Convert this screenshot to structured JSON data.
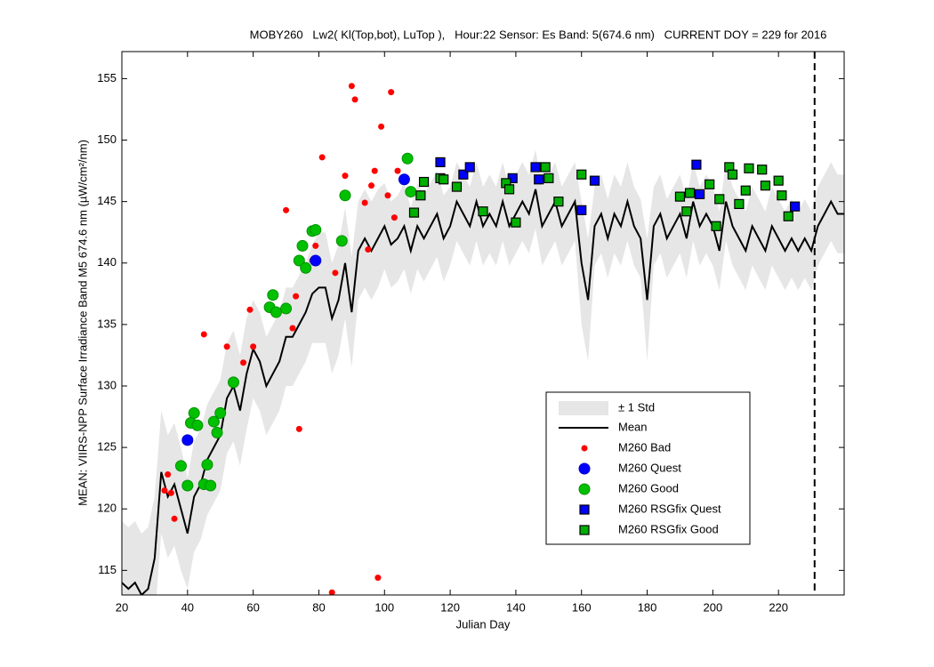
{
  "chart_data": {
    "type": "line",
    "title": "MOBY260   Lw2( Kl(Top,bot), LuTop ),   Hour:22 Sensor: Es Band: 5(674.6 nm)   CURRENT DOY = 229 for 2016",
    "xlabel": "Julian Day",
    "ylabel": "MEAN: VIIRS-NPP Surface Irradiance Band M5 674.6 nm (µW/cm²/nm)",
    "xlim": [
      20,
      240
    ],
    "ylim": [
      113,
      157.2
    ],
    "xticks": [
      20,
      40,
      60,
      80,
      100,
      120,
      140,
      160,
      180,
      200,
      220
    ],
    "yticks": [
      115,
      120,
      125,
      130,
      135,
      140,
      145,
      150,
      155
    ],
    "vline": 231,
    "x": [
      20,
      22,
      24,
      26,
      28,
      30,
      32,
      34,
      36,
      38,
      40,
      42,
      44,
      46,
      48,
      50,
      52,
      54,
      56,
      58,
      60,
      62,
      64,
      66,
      68,
      70,
      72,
      74,
      76,
      78,
      80,
      82,
      84,
      86,
      88,
      90,
      92,
      94,
      96,
      98,
      100,
      102,
      104,
      106,
      108,
      110,
      112,
      114,
      116,
      118,
      120,
      122,
      124,
      126,
      128,
      130,
      132,
      134,
      136,
      138,
      140,
      142,
      144,
      146,
      148,
      150,
      152,
      154,
      156,
      158,
      160,
      162,
      164,
      166,
      168,
      170,
      172,
      174,
      176,
      178,
      180,
      182,
      184,
      186,
      188,
      190,
      192,
      194,
      196,
      198,
      200,
      202,
      204,
      206,
      208,
      210,
      212,
      214,
      216,
      218,
      220,
      222,
      224,
      226,
      228,
      230,
      232,
      234,
      236,
      238,
      240
    ],
    "mean": {
      "name": "Mean",
      "color": "#000000",
      "values": [
        114,
        113.5,
        114,
        113,
        113.5,
        116,
        123,
        121,
        122,
        120,
        118,
        121,
        122,
        124,
        125,
        126,
        129,
        130,
        128,
        131,
        133,
        132,
        130,
        131,
        132,
        134,
        134,
        135,
        136,
        137.5,
        138,
        138,
        135.5,
        137,
        140,
        136,
        141,
        142,
        141,
        142,
        143,
        141.5,
        142,
        143,
        141,
        143,
        142,
        143,
        144,
        142,
        143,
        145,
        144,
        143,
        145,
        143,
        144,
        143,
        145,
        143,
        144,
        145,
        144,
        146,
        143,
        144,
        145,
        143,
        144,
        145,
        140,
        137,
        143,
        144,
        142,
        144,
        143,
        145,
        143,
        142,
        137,
        143,
        144,
        142,
        143,
        144,
        142,
        145,
        143,
        144,
        143,
        141,
        145,
        143,
        142,
        141,
        143,
        142,
        141,
        143,
        142,
        141,
        142,
        141,
        142,
        141,
        143,
        144,
        145,
        144,
        144
      ]
    },
    "band": {
      "name": "± 1 Std",
      "color": "#e6e6e6",
      "std": [
        5,
        5,
        5,
        5,
        5,
        5,
        5,
        5,
        5,
        5,
        4.5,
        4.5,
        4.5,
        4.5,
        4.5,
        4.5,
        4.5,
        4.5,
        4.5,
        4.5,
        4,
        4,
        4,
        4,
        4,
        4,
        4,
        4,
        4,
        4,
        4.5,
        4.5,
        4.5,
        4.5,
        4.5,
        4.5,
        4,
        4,
        4,
        4,
        3.5,
        3.5,
        3.5,
        3.5,
        3.5,
        3.5,
        3.5,
        3.5,
        3.5,
        3.5,
        3.2,
        3.2,
        3.2,
        3.2,
        3.2,
        3.2,
        3.2,
        3.2,
        3.2,
        3.2,
        3.2,
        3.2,
        3.2,
        3.2,
        3.2,
        3.2,
        3.2,
        3.2,
        3.2,
        3.2,
        5,
        5,
        3.2,
        3.2,
        3.2,
        3.2,
        3.2,
        3.2,
        3.2,
        3.2,
        5,
        3.2,
        3.2,
        3.2,
        3.2,
        3.2,
        3.2,
        3.2,
        3.2,
        3.2,
        3.2,
        3.2,
        3.2,
        3.2,
        3.2,
        3.2,
        3.2,
        3.2,
        3.2,
        3.2,
        3.2,
        3.2,
        3.2,
        3.2,
        3.2,
        3.2,
        3.2,
        3.2,
        3.2,
        3.2,
        3.2
      ]
    },
    "points": [
      {
        "name": "M260 Bad",
        "color": "#ff0000",
        "marker": "dot",
        "x": [
          33,
          34,
          35,
          36,
          45,
          52,
          57,
          59,
          60,
          70,
          72,
          73,
          74,
          78,
          79,
          81,
          84,
          85,
          88,
          90,
          91,
          94,
          95,
          96,
          97,
          98,
          99,
          101,
          102,
          103,
          104
        ],
        "y": [
          121.5,
          122.8,
          121.3,
          119.2,
          134.2,
          133.2,
          131.9,
          136.2,
          133.2,
          144.3,
          134.7,
          137.3,
          126.5,
          140.2,
          141.4,
          148.6,
          113.2,
          139.2,
          147.1,
          154.4,
          153.3,
          144.9,
          141.1,
          146.3,
          147.5,
          114.4,
          151.1,
          145.5,
          153.9,
          143.7,
          147.5
        ]
      },
      {
        "name": "M260 Quest",
        "color": "#0000ff",
        "marker": "circle",
        "x": [
          40,
          79,
          106
        ],
        "y": [
          125.6,
          140.2,
          146.8
        ]
      },
      {
        "name": "M260 Good",
        "color": "#00c000",
        "marker": "circle",
        "x": [
          38,
          40,
          41,
          42,
          43,
          45,
          46,
          47,
          48,
          49,
          50,
          54,
          65,
          66,
          67,
          70,
          74,
          75,
          76,
          78,
          79,
          87,
          88,
          107,
          108
        ],
        "y": [
          123.5,
          121.9,
          127.0,
          127.8,
          126.8,
          122,
          123.6,
          121.9,
          127.1,
          126.2,
          127.8,
          130.3,
          136.4,
          137.4,
          136.0,
          136.3,
          140.2,
          141.4,
          139.6,
          142.6,
          142.7,
          141.8,
          145.5,
          148.5,
          145.8
        ]
      },
      {
        "name": "M260 RSGfix Quest",
        "color": "#0000ff",
        "marker": "square",
        "x": [
          117,
          124,
          126,
          139,
          146,
          147,
          160,
          164,
          195,
          196,
          225
        ],
        "y": [
          148.2,
          147.2,
          147.8,
          146.9,
          147.8,
          146.8,
          144.3,
          146.7,
          148,
          145.6,
          144.6
        ]
      },
      {
        "name": "M260 RSGfix Good",
        "color": "#00b000",
        "marker": "square",
        "x": [
          109,
          111,
          112,
          117,
          118,
          122,
          130,
          137,
          138,
          140,
          149,
          150,
          153,
          160,
          190,
          192,
          193,
          199,
          201,
          202,
          205,
          206,
          208,
          210,
          211,
          215,
          216,
          220,
          221,
          223
        ],
        "y": [
          144.1,
          145.5,
          146.6,
          146.9,
          146.8,
          146.2,
          144.2,
          146.5,
          146,
          143.3,
          147.8,
          146.9,
          145,
          147.2,
          145.4,
          144.2,
          145.7,
          146.4,
          143,
          145.2,
          147.8,
          147.2,
          144.8,
          145.9,
          147.7,
          147.6,
          146.3,
          146.7,
          145.5,
          143.8
        ]
      }
    ]
  }
}
